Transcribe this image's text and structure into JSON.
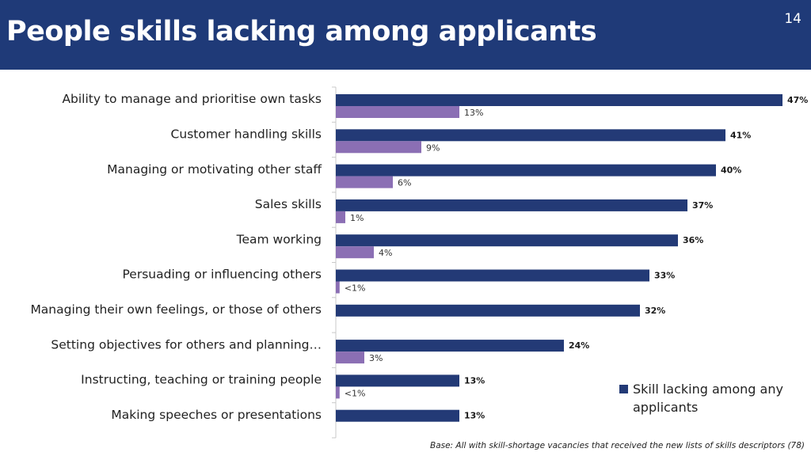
{
  "header": {
    "title": "People skills lacking among applicants",
    "page_number": "14"
  },
  "colors": {
    "header_bg": "#1f3a78",
    "series_applicants": "#233a76",
    "series_secondary": "#8b6fb4"
  },
  "chart_data": {
    "type": "bar",
    "orientation": "horizontal",
    "categories": [
      "Ability to manage and prioritise own tasks",
      "Customer handling skills",
      "Managing or motivating other staff",
      "Sales skills",
      "Team working",
      "Persuading or influencing others",
      "Managing their own feelings, or those of others",
      "Setting objectives for others and planning…",
      "Instructing, teaching or training people",
      "Making speeches or presentations"
    ],
    "series": [
      {
        "name": "Skill lacking among any applicants",
        "values": [
          47,
          41,
          40,
          37,
          36,
          33,
          32,
          24,
          13,
          13
        ],
        "labels": [
          "47%",
          "41%",
          "40%",
          "37%",
          "36%",
          "33%",
          "32%",
          "24%",
          "13%",
          "13%"
        ]
      },
      {
        "values": [
          13,
          9,
          6,
          1,
          4,
          0.4,
          null,
          3,
          0.4,
          null
        ],
        "labels": [
          "13%",
          "9%",
          "6%",
          "1%",
          "4%",
          "<1%",
          "",
          "3%",
          "<1%",
          ""
        ]
      }
    ],
    "xlim": [
      0,
      47
    ],
    "grid": false,
    "legend": "bottom-right"
  },
  "legend": {
    "label": "Skill lacking among any applicants"
  },
  "footnote": "Base: All with skill-shortage vacancies that received the new lists of skills descriptors (78)"
}
